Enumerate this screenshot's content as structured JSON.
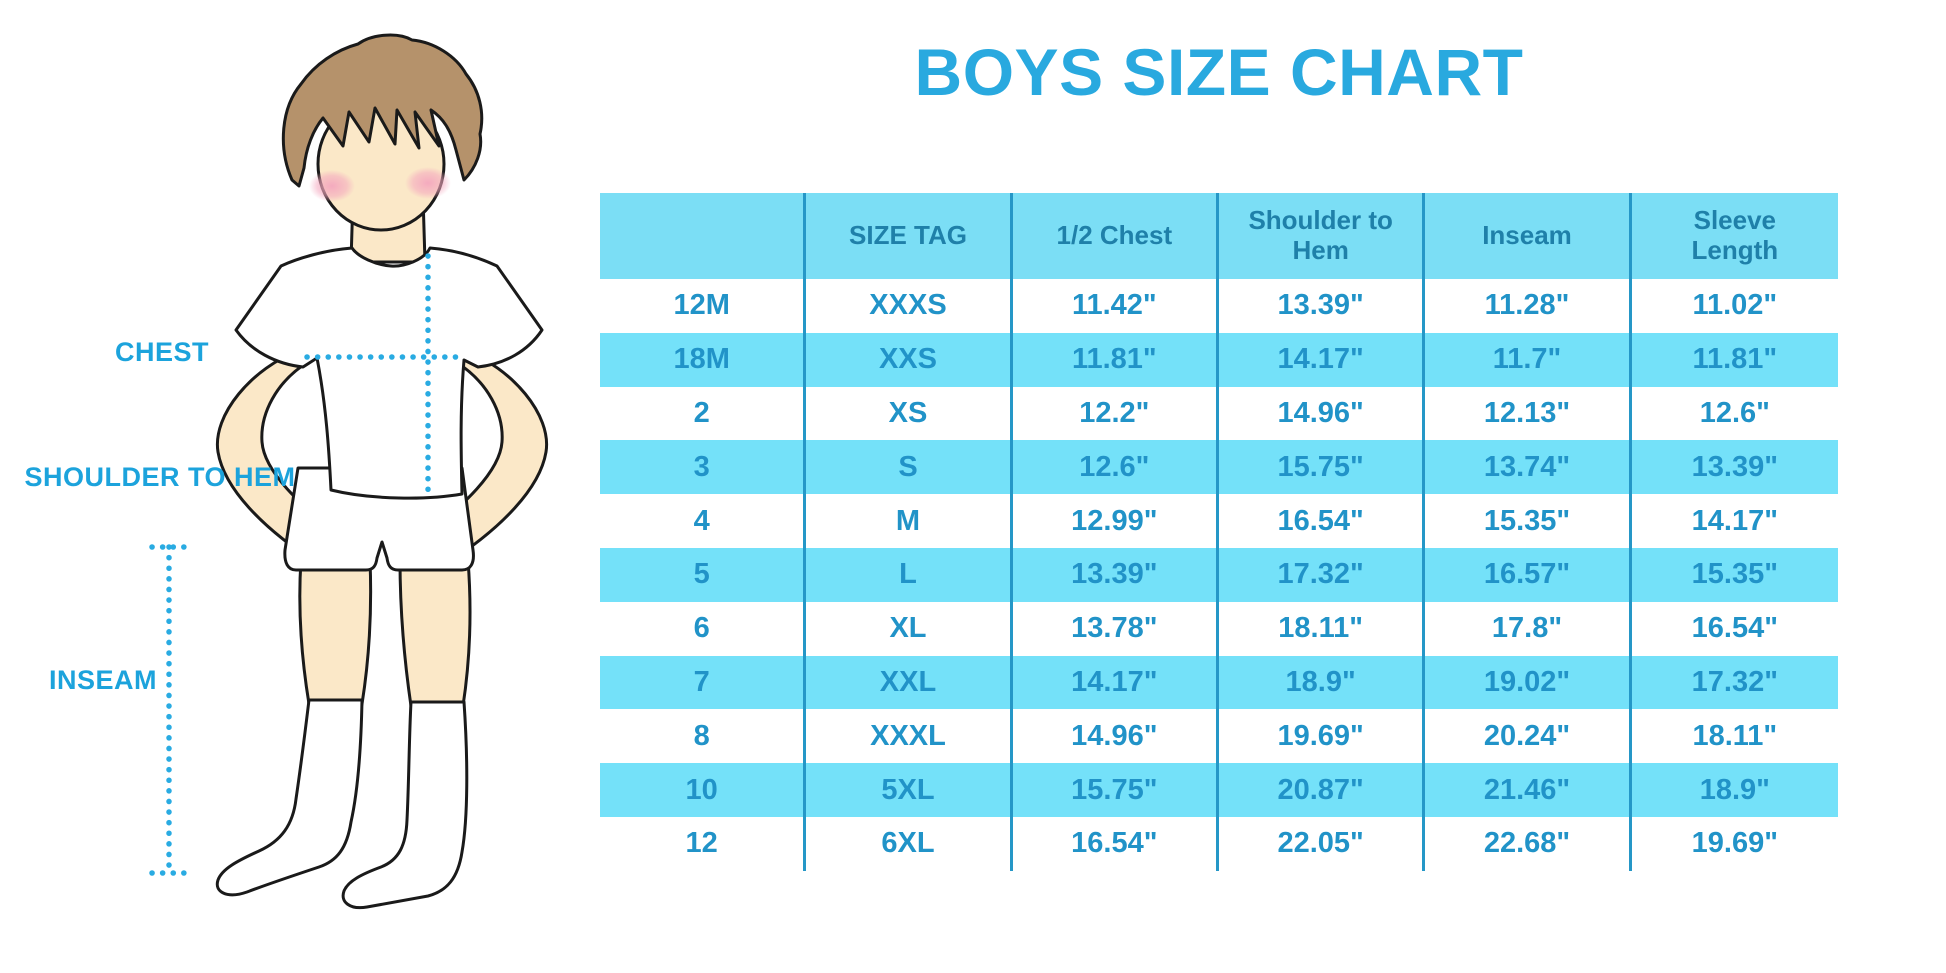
{
  "title": "BOYS SIZE CHART",
  "figure": {
    "chest_label": "CHEST",
    "shoulder_to_hem_label": "SHOULDER TO HEM",
    "inseam_label": "INSEAM"
  },
  "colors": {
    "title_blue": "#29A9DF",
    "label_blue": "#1CA3DC",
    "table_header_fill": "#7BDEF5",
    "table_alt_row_fill": "#74E1F9",
    "table_divider": "#2597C7",
    "header_text": "#1F80A9",
    "cell_text": "#2193C8",
    "dotted_line": "#29ABE2",
    "skin": "#FBE8C8",
    "hair": "#B5926B"
  },
  "chart_data": {
    "type": "table",
    "title": "BOYS SIZE CHART",
    "columns": [
      "",
      "SIZE TAG",
      "1/2 Chest",
      "Shoulder to Hem",
      "Inseam",
      "Sleeve Length"
    ],
    "rows": [
      [
        "12M",
        "XXXS",
        "11.42\"",
        "13.39\"",
        "11.28\"",
        "11.02\""
      ],
      [
        "18M",
        "XXS",
        "11.81\"",
        "14.17\"",
        "11.7\"",
        "11.81\""
      ],
      [
        "2",
        "XS",
        "12.2\"",
        "14.96\"",
        "12.13\"",
        "12.6\""
      ],
      [
        "3",
        "S",
        "12.6\"",
        "15.75\"",
        "13.74\"",
        "13.39\""
      ],
      [
        "4",
        "M",
        "12.99\"",
        "16.54\"",
        "15.35\"",
        "14.17\""
      ],
      [
        "5",
        "L",
        "13.39\"",
        "17.32\"",
        "16.57\"",
        "15.35\""
      ],
      [
        "6",
        "XL",
        "13.78\"",
        "18.11\"",
        "17.8\"",
        "16.54\""
      ],
      [
        "7",
        "XXL",
        "14.17\"",
        "18.9\"",
        "19.02\"",
        "17.32\""
      ],
      [
        "8",
        "XXXL",
        "14.96\"",
        "19.69\"",
        "20.24\"",
        "18.11\""
      ],
      [
        "10",
        "5XL",
        "15.75\"",
        "20.87\"",
        "21.46\"",
        "18.9\""
      ],
      [
        "12",
        "6XL",
        "16.54\"",
        "22.05\"",
        "22.68\"",
        "19.69\""
      ]
    ]
  }
}
